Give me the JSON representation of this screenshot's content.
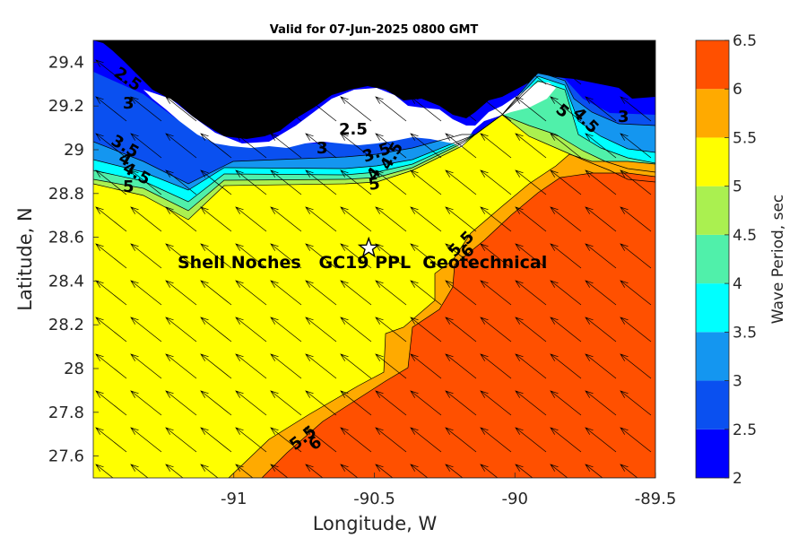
{
  "chart_data": {
    "type": "heatmap",
    "title": "Valid for 07-Jun-2025 0800 GMT",
    "xlabel": "Longitude, W",
    "ylabel": "Latitude, N",
    "xlim": [
      -91.5,
      -89.5
    ],
    "ylim": [
      27.5,
      29.5
    ],
    "x_ticks": [
      -91,
      -90.5,
      -90,
      -89.5
    ],
    "x_tick_labels": [
      "-91",
      "-90.5",
      "-90",
      "-89.5"
    ],
    "y_ticks": [
      27.6,
      27.8,
      28,
      28.2,
      28.4,
      28.6,
      28.8,
      29,
      29.2,
      29.4
    ],
    "y_tick_labels": [
      "27.6",
      "27.8",
      "28",
      "28.2",
      "28.4",
      "28.6",
      "28.8",
      "29",
      "29.2",
      "29.4"
    ],
    "colorbar": {
      "label": "Wave Period, sec",
      "levels": [
        2,
        2.5,
        3,
        3.5,
        4,
        4.5,
        5,
        5.5,
        6,
        6.5
      ],
      "tick_labels": [
        "2",
        "2.5",
        "3",
        "3.5",
        "4",
        "4.5",
        "5",
        "5.5",
        "6",
        "6.5"
      ],
      "colors": [
        "#0000ff",
        "#0a50f0",
        "#1496f0",
        "#00ffff",
        "#50f0aa",
        "#aaf050",
        "#ffff00",
        "#ffaa00",
        "#ff5000"
      ]
    },
    "land_color": "#000000",
    "station": {
      "label": "Shell Noches   GC19 PPL  Geotechnical",
      "lon": -90.52,
      "lat": 28.55,
      "marker": "star"
    },
    "contour_labels": [
      "2.5",
      "3",
      "3.5",
      "4",
      "4.5",
      "5",
      "2.5",
      "3",
      "3.5",
      "4",
      "4.5",
      "5",
      "5",
      "4.5",
      "3",
      "5.5",
      "6",
      "5.5",
      "6"
    ],
    "vectors": {
      "direction": "toward north-west",
      "color": "#000000"
    }
  }
}
